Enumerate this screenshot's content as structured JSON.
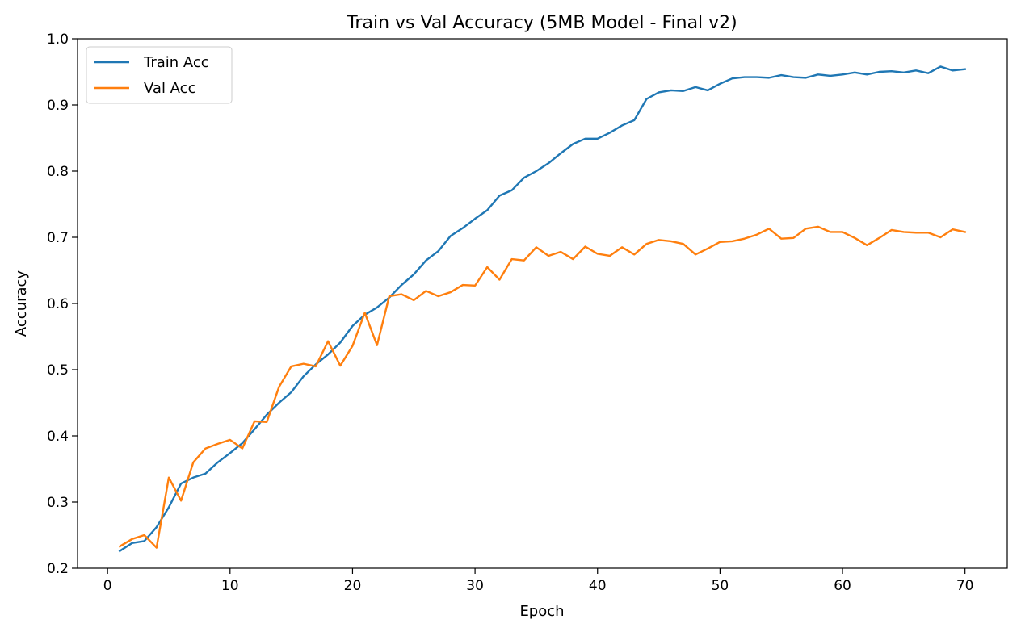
{
  "chart_data": {
    "type": "line",
    "title": "Train vs Val Accuracy (5MB Model - Final v2)",
    "xlabel": "Epoch",
    "ylabel": "Accuracy",
    "xlim": [
      -2.45,
      73.45
    ],
    "ylim": [
      0.2,
      1.0
    ],
    "xticks": [
      0,
      10,
      20,
      30,
      40,
      50,
      60,
      70
    ],
    "yticks": [
      0.2,
      0.3,
      0.4,
      0.5,
      0.6,
      0.7,
      0.8,
      0.9,
      1.0
    ],
    "xtick_labels": [
      "0",
      "10",
      "20",
      "30",
      "40",
      "50",
      "60",
      "70"
    ],
    "ytick_labels": [
      "0.2",
      "0.3",
      "0.4",
      "0.5",
      "0.6",
      "0.7",
      "0.8",
      "0.9",
      "1.0"
    ],
    "grid": false,
    "legend_position": "top-left",
    "x": [
      1,
      2,
      3,
      4,
      5,
      6,
      7,
      8,
      9,
      10,
      11,
      12,
      13,
      14,
      15,
      16,
      17,
      18,
      19,
      20,
      21,
      22,
      23,
      24,
      25,
      26,
      27,
      28,
      29,
      30,
      31,
      32,
      33,
      34,
      35,
      36,
      37,
      38,
      39,
      40,
      41,
      42,
      43,
      44,
      45,
      46,
      47,
      48,
      49,
      50,
      51,
      52,
      53,
      54,
      55,
      56,
      57,
      58,
      59,
      60,
      61,
      62,
      63,
      64,
      65,
      66,
      67,
      68,
      69,
      70
    ],
    "series": [
      {
        "name": "Train Acc",
        "color": "#1f77b4",
        "values": [
          0.226,
          0.238,
          0.241,
          0.262,
          0.292,
          0.328,
          0.337,
          0.343,
          0.36,
          0.374,
          0.389,
          0.41,
          0.432,
          0.45,
          0.466,
          0.49,
          0.508,
          0.523,
          0.541,
          0.566,
          0.583,
          0.594,
          0.609,
          0.628,
          0.644,
          0.665,
          0.679,
          0.702,
          0.714,
          0.728,
          0.741,
          0.763,
          0.771,
          0.79,
          0.8,
          0.812,
          0.827,
          0.841,
          0.849,
          0.849,
          0.858,
          0.869,
          0.877,
          0.909,
          0.919,
          0.922,
          0.921,
          0.927,
          0.922,
          0.932,
          0.94,
          0.942,
          0.942,
          0.941,
          0.945,
          0.942,
          0.941,
          0.946,
          0.944,
          0.946,
          0.949,
          0.946,
          0.95,
          0.951,
          0.949,
          0.952,
          0.948,
          0.958,
          0.952,
          0.954
        ]
      },
      {
        "name": "Val Acc",
        "color": "#ff7f0e",
        "values": [
          0.233,
          0.244,
          0.25,
          0.231,
          0.337,
          0.302,
          0.36,
          0.381,
          0.388,
          0.394,
          0.381,
          0.422,
          0.421,
          0.474,
          0.505,
          0.509,
          0.505,
          0.543,
          0.506,
          0.536,
          0.586,
          0.537,
          0.611,
          0.614,
          0.605,
          0.619,
          0.611,
          0.617,
          0.628,
          0.627,
          0.655,
          0.636,
          0.667,
          0.665,
          0.685,
          0.672,
          0.678,
          0.667,
          0.686,
          0.675,
          0.672,
          0.685,
          0.674,
          0.69,
          0.696,
          0.694,
          0.69,
          0.674,
          0.683,
          0.693,
          0.694,
          0.698,
          0.704,
          0.713,
          0.698,
          0.699,
          0.713,
          0.716,
          0.708,
          0.708,
          0.699,
          0.688,
          0.699,
          0.711,
          0.708,
          0.707,
          0.707,
          0.7,
          0.712,
          0.708
        ]
      }
    ]
  }
}
